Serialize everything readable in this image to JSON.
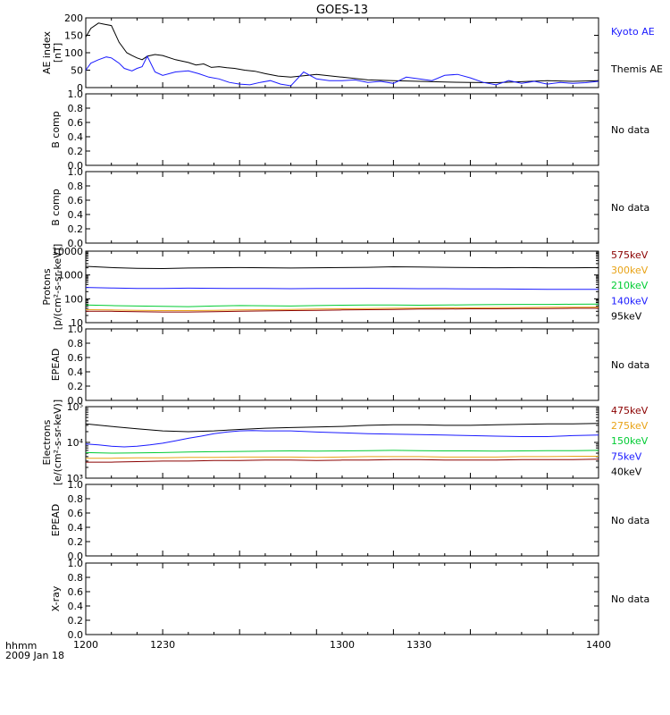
{
  "title": "GOES-13",
  "time_axis": {
    "range": [
      1200,
      1400
    ],
    "tick_labels": [
      "1200",
      "1230",
      "1300",
      "1330",
      "1400"
    ],
    "corner_label_top": "hhmm",
    "corner_label_bottom": "2009 Jan 18"
  },
  "colors": {
    "black": "#000000",
    "blue": "#1a1aff",
    "green": "#00cc33",
    "orange": "#e8a317",
    "darkred": "#8b0000"
  },
  "chart_data": [
    {
      "type": "line",
      "ylabel": [
        "AE index",
        "[nT]"
      ],
      "ylim": [
        0,
        200
      ],
      "yscale": "linear",
      "ticks": [
        0,
        50,
        100,
        150,
        200
      ],
      "tick_labels": [
        "0",
        "50",
        "100",
        "150",
        "200"
      ],
      "side_labels": [
        {
          "text": "Kyoto AE",
          "color": "blue"
        },
        {
          "text": "Themis AE",
          "color": "black"
        }
      ],
      "series": [
        {
          "name": "Themis AE",
          "color": "black",
          "x": [
            1200,
            1202,
            1205,
            1207,
            1210,
            1213,
            1216,
            1218,
            1220,
            1222,
            1224,
            1227,
            1230,
            1235,
            1240,
            1243,
            1246,
            1249,
            1252,
            1255,
            1258,
            1262,
            1266,
            1270,
            1275,
            1280,
            1290,
            1300,
            1310,
            1320,
            1330,
            1340,
            1350,
            1360,
            1370,
            1380,
            1390,
            1400
          ],
          "y": [
            145,
            170,
            185,
            182,
            178,
            130,
            100,
            92,
            85,
            80,
            90,
            95,
            92,
            80,
            72,
            65,
            68,
            58,
            60,
            57,
            55,
            50,
            47,
            40,
            33,
            30,
            38,
            30,
            22,
            20,
            18,
            16,
            15,
            14,
            17,
            20,
            18,
            20
          ]
        },
        {
          "name": "Kyoto AE",
          "color": "blue",
          "x": [
            1200,
            1202,
            1205,
            1208,
            1210,
            1213,
            1215,
            1218,
            1220,
            1222,
            1224,
            1227,
            1230,
            1235,
            1240,
            1244,
            1248,
            1252,
            1256,
            1260,
            1264,
            1268,
            1272,
            1276,
            1280,
            1285,
            1290,
            1295,
            1300,
            1305,
            1310,
            1315,
            1320,
            1325,
            1330,
            1335,
            1340,
            1345,
            1350,
            1355,
            1360,
            1365,
            1370,
            1375,
            1380,
            1385,
            1390,
            1395,
            1400
          ],
          "y": [
            50,
            70,
            80,
            88,
            85,
            70,
            55,
            48,
            55,
            60,
            90,
            45,
            35,
            45,
            48,
            40,
            30,
            25,
            15,
            10,
            8,
            15,
            20,
            10,
            5,
            45,
            25,
            20,
            20,
            22,
            15,
            18,
            12,
            30,
            25,
            20,
            35,
            38,
            28,
            15,
            8,
            20,
            12,
            18,
            10,
            15,
            12,
            14,
            18
          ]
        }
      ]
    },
    {
      "type": "line",
      "ylabel": [
        "B comp"
      ],
      "ylim": [
        0,
        1
      ],
      "yscale": "linear",
      "ticks": [
        0,
        0.2,
        0.4,
        0.6,
        0.8,
        1.0
      ],
      "tick_labels": [
        "0.0",
        "0.2",
        "0.4",
        "0.6",
        "0.8",
        "1.0"
      ],
      "side_labels": [
        {
          "text": "No data",
          "color": "black"
        }
      ],
      "series": []
    },
    {
      "type": "line",
      "ylabel": [
        "B comp"
      ],
      "ylim": [
        0,
        1
      ],
      "yscale": "linear",
      "ticks": [
        0,
        0.2,
        0.4,
        0.6,
        0.8,
        1.0
      ],
      "tick_labels": [
        "0.0",
        "0.2",
        "0.4",
        "0.6",
        "0.8",
        "1.0"
      ],
      "side_labels": [
        {
          "text": "No data",
          "color": "black"
        }
      ],
      "series": []
    },
    {
      "type": "line",
      "ylabel": [
        "Protons",
        "[p/(cm²-s-sr-keV)]"
      ],
      "ylim": [
        10,
        10000
      ],
      "yscale": "log",
      "ticks": [
        10,
        100,
        1000,
        10000
      ],
      "tick_labels": [
        "10",
        "100",
        "1000",
        "10000"
      ],
      "side_labels": [
        {
          "text": "575keV",
          "color": "darkred"
        },
        {
          "text": "300keV",
          "color": "orange"
        },
        {
          "text": "210keV",
          "color": "green"
        },
        {
          "text": "140keV",
          "color": "blue"
        },
        {
          "text": "95keV",
          "color": "black"
        }
      ],
      "series": [
        {
          "name": "95keV",
          "color": "black",
          "x": [
            1200,
            1210,
            1220,
            1230,
            1240,
            1250,
            1260,
            1270,
            1280,
            1290,
            1300,
            1310,
            1320,
            1330,
            1340,
            1350,
            1360,
            1370,
            1380,
            1390,
            1400
          ],
          "y": [
            2300,
            2050,
            1900,
            1850,
            1950,
            2000,
            2050,
            2000,
            1950,
            2000,
            2050,
            2100,
            2200,
            2150,
            2100,
            2050,
            2000,
            2050,
            2000,
            2000,
            2050
          ]
        },
        {
          "name": "140keV",
          "color": "blue",
          "x": [
            1200,
            1210,
            1220,
            1230,
            1240,
            1250,
            1260,
            1270,
            1280,
            1290,
            1300,
            1310,
            1320,
            1330,
            1340,
            1350,
            1360,
            1370,
            1380,
            1390,
            1400
          ],
          "y": [
            300,
            285,
            270,
            270,
            280,
            275,
            270,
            270,
            265,
            270,
            270,
            275,
            270,
            265,
            265,
            260,
            260,
            255,
            250,
            250,
            250
          ]
        },
        {
          "name": "210keV",
          "color": "green",
          "x": [
            1200,
            1210,
            1220,
            1230,
            1240,
            1250,
            1260,
            1270,
            1280,
            1290,
            1300,
            1310,
            1320,
            1330,
            1340,
            1350,
            1360,
            1370,
            1380,
            1390,
            1400
          ],
          "y": [
            55,
            52,
            50,
            48,
            47,
            50,
            52,
            51,
            50,
            52,
            54,
            55,
            55,
            54,
            55,
            56,
            57,
            58,
            58,
            59,
            60
          ]
        },
        {
          "name": "300keV",
          "color": "orange",
          "x": [
            1200,
            1210,
            1220,
            1230,
            1240,
            1250,
            1260,
            1270,
            1280,
            1290,
            1300,
            1310,
            1320,
            1330,
            1340,
            1350,
            1360,
            1370,
            1380,
            1390,
            1400
          ],
          "y": [
            35,
            34,
            33,
            32,
            32,
            33,
            34,
            35,
            36,
            37,
            38,
            39,
            40,
            41,
            42,
            42,
            43,
            43,
            44,
            44,
            45
          ]
        },
        {
          "name": "575keV",
          "color": "darkred",
          "x": [
            1200,
            1210,
            1220,
            1230,
            1240,
            1250,
            1260,
            1270,
            1280,
            1290,
            1300,
            1310,
            1320,
            1330,
            1340,
            1350,
            1360,
            1370,
            1380,
            1390,
            1400
          ],
          "y": [
            30,
            30,
            29,
            28,
            28,
            29,
            30,
            31,
            32,
            33,
            34,
            35,
            36,
            37,
            37,
            38,
            38,
            39,
            39,
            40,
            40
          ]
        }
      ]
    },
    {
      "type": "line",
      "ylabel": [
        "EPEAD"
      ],
      "ylim": [
        0,
        1
      ],
      "yscale": "linear",
      "ticks": [
        0,
        0.2,
        0.4,
        0.6,
        0.8,
        1.0
      ],
      "tick_labels": [
        "0.0",
        "0.2",
        "0.4",
        "0.6",
        "0.8",
        "1.0"
      ],
      "side_labels": [
        {
          "text": "No data",
          "color": "black"
        }
      ],
      "series": []
    },
    {
      "type": "line",
      "ylabel": [
        "Electrons",
        "[e/(cm²-s-sr-keV)]"
      ],
      "ylim": [
        1000,
        100000
      ],
      "yscale": "log",
      "ticks": [
        1000,
        10000,
        100000
      ],
      "tick_labels": [
        "10³",
        "10⁴",
        "10⁵"
      ],
      "side_labels": [
        {
          "text": "475keV",
          "color": "darkred"
        },
        {
          "text": "275keV",
          "color": "orange"
        },
        {
          "text": "150keV",
          "color": "green"
        },
        {
          "text": "75keV",
          "color": "blue"
        },
        {
          "text": "40keV",
          "color": "black"
        }
      ],
      "series": [
        {
          "name": "40keV",
          "color": "black",
          "x": [
            1200,
            1210,
            1220,
            1230,
            1240,
            1250,
            1260,
            1270,
            1280,
            1290,
            1300,
            1310,
            1320,
            1330,
            1340,
            1350,
            1360,
            1370,
            1380,
            1390,
            1400
          ],
          "y": [
            33000,
            28000,
            24000,
            21000,
            20000,
            21000,
            23000,
            25000,
            26000,
            27000,
            28000,
            30000,
            31000,
            31000,
            30000,
            30000,
            31000,
            32000,
            33000,
            33000,
            34000
          ]
        },
        {
          "name": "75keV",
          "color": "blue",
          "x": [
            1200,
            1205,
            1210,
            1215,
            1220,
            1225,
            1230,
            1235,
            1240,
            1245,
            1250,
            1255,
            1260,
            1265,
            1270,
            1280,
            1290,
            1300,
            1310,
            1320,
            1330,
            1340,
            1350,
            1360,
            1370,
            1380,
            1390,
            1400
          ],
          "y": [
            9000,
            8500,
            7800,
            7500,
            7800,
            8500,
            9500,
            11000,
            13000,
            15000,
            17500,
            19500,
            21000,
            21500,
            21000,
            21000,
            19500,
            18500,
            17500,
            17000,
            16500,
            16000,
            15500,
            15000,
            14500,
            14500,
            15500,
            16000
          ]
        },
        {
          "name": "150keV",
          "color": "green",
          "x": [
            1200,
            1210,
            1220,
            1230,
            1240,
            1250,
            1260,
            1270,
            1280,
            1290,
            1300,
            1310,
            1320,
            1330,
            1340,
            1350,
            1360,
            1370,
            1380,
            1390,
            1400
          ],
          "y": [
            5200,
            5000,
            5100,
            5200,
            5400,
            5500,
            5600,
            5700,
            5800,
            5700,
            5800,
            5900,
            6000,
            5900,
            5800,
            5800,
            5700,
            5800,
            5900,
            5900,
            6000
          ]
        },
        {
          "name": "275keV",
          "color": "orange",
          "x": [
            1200,
            1210,
            1220,
            1230,
            1240,
            1250,
            1260,
            1270,
            1280,
            1290,
            1300,
            1310,
            1320,
            1330,
            1340,
            1350,
            1360,
            1370,
            1380,
            1390,
            1400
          ],
          "y": [
            3600,
            3600,
            3700,
            3700,
            3800,
            3800,
            3900,
            3900,
            3900,
            3800,
            3900,
            4000,
            4000,
            4000,
            3900,
            3900,
            3900,
            4000,
            4000,
            4100,
            4100
          ]
        },
        {
          "name": "475keV",
          "color": "darkred",
          "x": [
            1200,
            1210,
            1220,
            1230,
            1240,
            1250,
            1260,
            1270,
            1280,
            1290,
            1300,
            1310,
            1320,
            1330,
            1340,
            1350,
            1360,
            1370,
            1380,
            1390,
            1400
          ],
          "y": [
            2800,
            2800,
            2900,
            3000,
            3000,
            3100,
            3100,
            3200,
            3200,
            3100,
            3200,
            3200,
            3300,
            3300,
            3200,
            3200,
            3200,
            3300,
            3300,
            3300,
            3400
          ]
        }
      ]
    },
    {
      "type": "line",
      "ylabel": [
        "EPEAD"
      ],
      "ylim": [
        0,
        1
      ],
      "yscale": "linear",
      "ticks": [
        0,
        0.2,
        0.4,
        0.6,
        0.8,
        1.0
      ],
      "tick_labels": [
        "0.0",
        "0.2",
        "0.4",
        "0.6",
        "0.8",
        "1.0"
      ],
      "side_labels": [
        {
          "text": "No data",
          "color": "black"
        }
      ],
      "series": []
    },
    {
      "type": "line",
      "ylabel": [
        "X-ray"
      ],
      "ylim": [
        0,
        1
      ],
      "yscale": "linear",
      "ticks": [
        0,
        0.2,
        0.4,
        0.6,
        0.8,
        1.0
      ],
      "tick_labels": [
        "0.0",
        "0.2",
        "0.4",
        "0.6",
        "0.8",
        "1.0"
      ],
      "side_labels": [
        {
          "text": "No data",
          "color": "black"
        }
      ],
      "series": []
    }
  ]
}
